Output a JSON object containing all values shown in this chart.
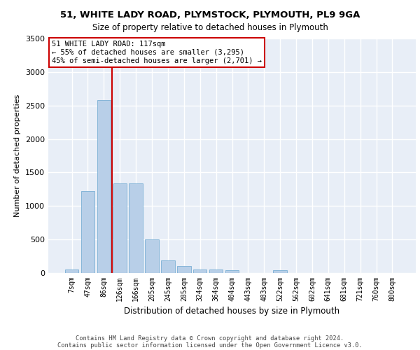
{
  "title1": "51, WHITE LADY ROAD, PLYMSTOCK, PLYMOUTH, PL9 9GA",
  "title2": "Size of property relative to detached houses in Plymouth",
  "xlabel": "Distribution of detached houses by size in Plymouth",
  "ylabel": "Number of detached properties",
  "categories": [
    "7sqm",
    "47sqm",
    "86sqm",
    "126sqm",
    "166sqm",
    "205sqm",
    "245sqm",
    "285sqm",
    "324sqm",
    "364sqm",
    "404sqm",
    "443sqm",
    "483sqm",
    "522sqm",
    "562sqm",
    "602sqm",
    "641sqm",
    "681sqm",
    "721sqm",
    "760sqm",
    "800sqm"
  ],
  "values": [
    50,
    1220,
    2580,
    1340,
    1340,
    500,
    190,
    100,
    50,
    50,
    40,
    0,
    0,
    40,
    0,
    0,
    0,
    0,
    0,
    0,
    0
  ],
  "bar_color": "#b8cfe8",
  "bar_edge_color": "#7aafd4",
  "vline_pos": 2.5,
  "vline_color": "#cc0000",
  "annotation_text": "51 WHITE LADY ROAD: 117sqm\n← 55% of detached houses are smaller (3,295)\n45% of semi-detached houses are larger (2,701) →",
  "annotation_box_color": "#ffffff",
  "annotation_box_edge": "#cc0000",
  "ylim": [
    0,
    3500
  ],
  "yticks": [
    0,
    500,
    1000,
    1500,
    2000,
    2500,
    3000,
    3500
  ],
  "footer1": "Contains HM Land Registry data © Crown copyright and database right 2024.",
  "footer2": "Contains public sector information licensed under the Open Government Licence v3.0.",
  "bg_color": "#e8eef7",
  "grid_color": "#ffffff"
}
